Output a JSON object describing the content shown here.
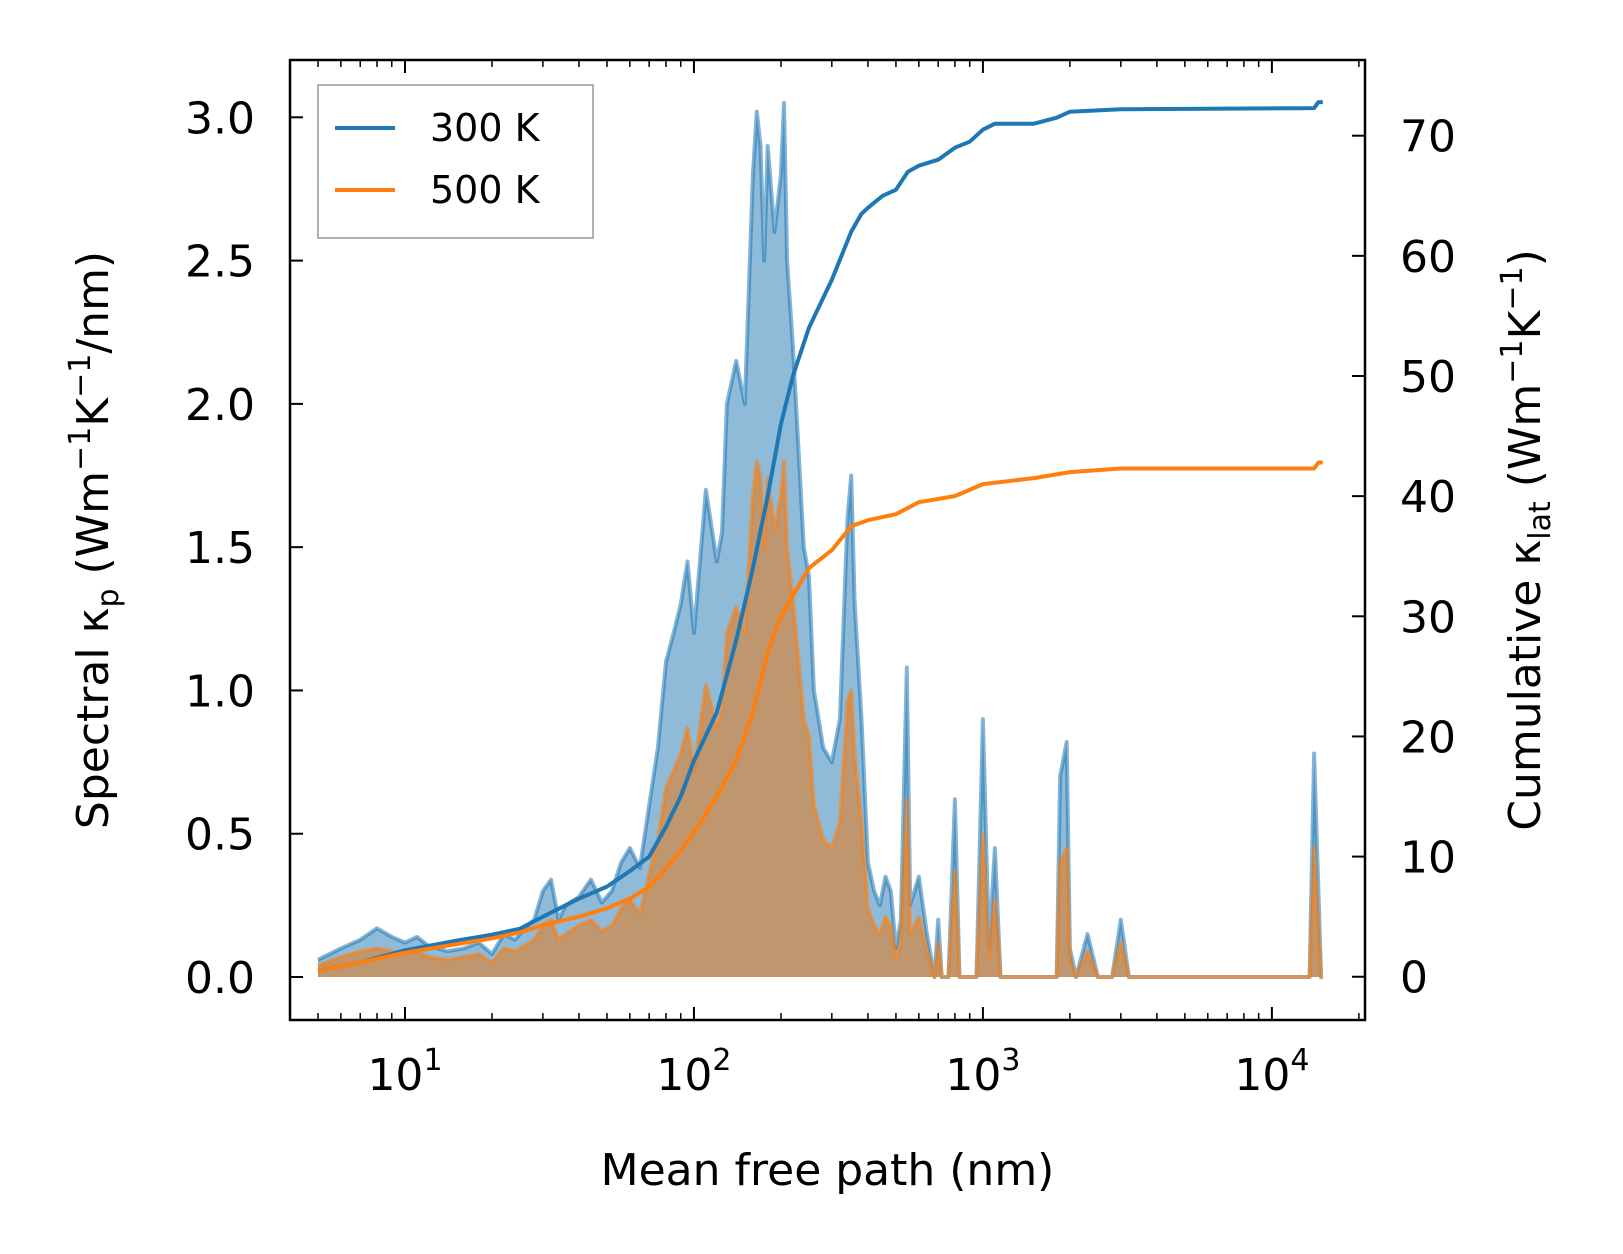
{
  "chart_data": {
    "type": "line",
    "xscale": "log",
    "xlabel": "Mean free path (nm)",
    "ylabel_left": {
      "base": "Spectral κ",
      "sub": "p",
      "unit_open": " (Wm",
      "sup1": "−1",
      "mid": "K",
      "sup2": "−1",
      "unit_close": "/nm)"
    },
    "ylabel_right": {
      "base": "Cumulative κ",
      "sub": "lat",
      "unit_open": " (Wm",
      "sup1": "−1",
      "mid": "K",
      "sup2": "−1",
      "unit_close": ")"
    },
    "xlim": [
      4.0,
      21000
    ],
    "ylim_left": [
      -0.15,
      3.2
    ],
    "ylim_right": [
      -3.6,
      76.3
    ],
    "xticks": [
      {
        "value": 10,
        "base": "10",
        "exp": "1"
      },
      {
        "value": 100,
        "base": "10",
        "exp": "2"
      },
      {
        "value": 1000,
        "base": "10",
        "exp": "3"
      },
      {
        "value": 10000,
        "base": "10",
        "exp": "4"
      }
    ],
    "yticks_left": [
      {
        "value": 0.0,
        "label": "0.0"
      },
      {
        "value": 0.5,
        "label": "0.5"
      },
      {
        "value": 1.0,
        "label": "1.0"
      },
      {
        "value": 1.5,
        "label": "1.5"
      },
      {
        "value": 2.0,
        "label": "2.0"
      },
      {
        "value": 2.5,
        "label": "2.5"
      },
      {
        "value": 3.0,
        "label": "3.0"
      }
    ],
    "yticks_right": [
      {
        "value": 0,
        "label": "0"
      },
      {
        "value": 10,
        "label": "10"
      },
      {
        "value": 20,
        "label": "20"
      },
      {
        "value": 30,
        "label": "30"
      },
      {
        "value": 40,
        "label": "40"
      },
      {
        "value": 50,
        "label": "50"
      },
      {
        "value": 60,
        "label": "60"
      },
      {
        "value": 70,
        "label": "70"
      }
    ],
    "legend": {
      "position": "top-left"
    },
    "series": [
      {
        "name": "300 K",
        "color": "#1f77b4",
        "spectral": [
          [
            5,
            0.06
          ],
          [
            6,
            0.1
          ],
          [
            7,
            0.13
          ],
          [
            8,
            0.17
          ],
          [
            9,
            0.14
          ],
          [
            10,
            0.12
          ],
          [
            11,
            0.14
          ],
          [
            12,
            0.11
          ],
          [
            14,
            0.09
          ],
          [
            16,
            0.1
          ],
          [
            18,
            0.12
          ],
          [
            20,
            0.08
          ],
          [
            22,
            0.15
          ],
          [
            24,
            0.13
          ],
          [
            26,
            0.17
          ],
          [
            28,
            0.2
          ],
          [
            30,
            0.3
          ],
          [
            32,
            0.34
          ],
          [
            34,
            0.2
          ],
          [
            36,
            0.25
          ],
          [
            40,
            0.28
          ],
          [
            44,
            0.34
          ],
          [
            48,
            0.26
          ],
          [
            52,
            0.3
          ],
          [
            56,
            0.4
          ],
          [
            60,
            0.45
          ],
          [
            65,
            0.38
          ],
          [
            70,
            0.6
          ],
          [
            75,
            0.8
          ],
          [
            80,
            1.1
          ],
          [
            85,
            1.2
          ],
          [
            90,
            1.3
          ],
          [
            95,
            1.45
          ],
          [
            100,
            1.2
          ],
          [
            110,
            1.7
          ],
          [
            120,
            1.45
          ],
          [
            125,
            1.55
          ],
          [
            130,
            2.0
          ],
          [
            140,
            2.15
          ],
          [
            150,
            2.0
          ],
          [
            160,
            2.8
          ],
          [
            165,
            3.02
          ],
          [
            170,
            2.9
          ],
          [
            175,
            2.5
          ],
          [
            180,
            2.9
          ],
          [
            190,
            2.6
          ],
          [
            200,
            2.8
          ],
          [
            205,
            3.05
          ],
          [
            210,
            2.5
          ],
          [
            220,
            2.2
          ],
          [
            240,
            1.5
          ],
          [
            250,
            1.4
          ],
          [
            260,
            1.0
          ],
          [
            270,
            0.9
          ],
          [
            280,
            0.8
          ],
          [
            300,
            0.75
          ],
          [
            320,
            0.9
          ],
          [
            340,
            1.6
          ],
          [
            350,
            1.75
          ],
          [
            360,
            1.3
          ],
          [
            380,
            0.9
          ],
          [
            400,
            0.4
          ],
          [
            420,
            0.3
          ],
          [
            440,
            0.25
          ],
          [
            460,
            0.35
          ],
          [
            480,
            0.3
          ],
          [
            500,
            0.1
          ],
          [
            520,
            0.2
          ],
          [
            545,
            1.08
          ],
          [
            560,
            0.25
          ],
          [
            600,
            0.35
          ],
          [
            640,
            0.15
          ],
          [
            680,
            0.0
          ],
          [
            700,
            0.2
          ],
          [
            720,
            0.0
          ],
          [
            760,
            0.0
          ],
          [
            800,
            0.62
          ],
          [
            830,
            0.0
          ],
          [
            870,
            0.0
          ],
          [
            900,
            0.0
          ],
          [
            950,
            0.0
          ],
          [
            1000,
            0.9
          ],
          [
            1050,
            0.1
          ],
          [
            1100,
            0.45
          ],
          [
            1150,
            0.0
          ],
          [
            1200,
            0.0
          ],
          [
            1800,
            0.0
          ],
          [
            1850,
            0.7
          ],
          [
            1950,
            0.82
          ],
          [
            2000,
            0.1
          ],
          [
            2100,
            0.0
          ],
          [
            2300,
            0.15
          ],
          [
            2500,
            0.0
          ],
          [
            2800,
            0.0
          ],
          [
            3000,
            0.2
          ],
          [
            3200,
            0.0
          ],
          [
            13500,
            0.0
          ],
          [
            14000,
            0.78
          ],
          [
            14800,
            0.0
          ],
          [
            15000,
            0.0
          ]
        ],
        "cumulative": [
          [
            5,
            0.5
          ],
          [
            7,
            1.2
          ],
          [
            10,
            2.2
          ],
          [
            15,
            3.0
          ],
          [
            20,
            3.5
          ],
          [
            25,
            4.0
          ],
          [
            30,
            5.0
          ],
          [
            40,
            6.5
          ],
          [
            50,
            7.5
          ],
          [
            60,
            8.8
          ],
          [
            70,
            10.0
          ],
          [
            80,
            12.5
          ],
          [
            90,
            15.0
          ],
          [
            100,
            18.0
          ],
          [
            120,
            22.0
          ],
          [
            140,
            28.0
          ],
          [
            160,
            34.0
          ],
          [
            180,
            40.0
          ],
          [
            200,
            46.0
          ],
          [
            220,
            50.0
          ],
          [
            250,
            54.0
          ],
          [
            280,
            56.5
          ],
          [
            300,
            58.0
          ],
          [
            350,
            62.0
          ],
          [
            380,
            63.5
          ],
          [
            400,
            64.0
          ],
          [
            450,
            65.0
          ],
          [
            500,
            65.5
          ],
          [
            550,
            67.0
          ],
          [
            600,
            67.5
          ],
          [
            700,
            68.0
          ],
          [
            800,
            69.0
          ],
          [
            900,
            69.5
          ],
          [
            1000,
            70.5
          ],
          [
            1100,
            71.0
          ],
          [
            1500,
            71.0
          ],
          [
            1800,
            71.5
          ],
          [
            2000,
            72.0
          ],
          [
            3000,
            72.2
          ],
          [
            14000,
            72.3
          ],
          [
            14500,
            72.8
          ],
          [
            15000,
            72.8
          ]
        ]
      },
      {
        "name": "500 K",
        "color": "#ff7f0e",
        "spectral": [
          [
            5,
            0.04
          ],
          [
            6,
            0.07
          ],
          [
            7,
            0.09
          ],
          [
            8,
            0.1
          ],
          [
            9,
            0.09
          ],
          [
            10,
            0.08
          ],
          [
            11,
            0.09
          ],
          [
            12,
            0.07
          ],
          [
            14,
            0.06
          ],
          [
            16,
            0.07
          ],
          [
            18,
            0.08
          ],
          [
            20,
            0.05
          ],
          [
            22,
            0.1
          ],
          [
            24,
            0.09
          ],
          [
            26,
            0.11
          ],
          [
            28,
            0.13
          ],
          [
            30,
            0.18
          ],
          [
            32,
            0.2
          ],
          [
            34,
            0.13
          ],
          [
            36,
            0.15
          ],
          [
            40,
            0.18
          ],
          [
            44,
            0.2
          ],
          [
            48,
            0.16
          ],
          [
            52,
            0.18
          ],
          [
            56,
            0.24
          ],
          [
            60,
            0.27
          ],
          [
            65,
            0.22
          ],
          [
            70,
            0.36
          ],
          [
            75,
            0.48
          ],
          [
            80,
            0.66
          ],
          [
            85,
            0.72
          ],
          [
            90,
            0.78
          ],
          [
            95,
            0.87
          ],
          [
            100,
            0.72
          ],
          [
            110,
            1.02
          ],
          [
            120,
            0.87
          ],
          [
            125,
            0.93
          ],
          [
            130,
            1.2
          ],
          [
            140,
            1.29
          ],
          [
            150,
            1.2
          ],
          [
            160,
            1.68
          ],
          [
            165,
            1.8
          ],
          [
            170,
            1.74
          ],
          [
            175,
            1.5
          ],
          [
            180,
            1.74
          ],
          [
            190,
            1.56
          ],
          [
            200,
            1.68
          ],
          [
            205,
            1.8
          ],
          [
            210,
            1.5
          ],
          [
            220,
            1.32
          ],
          [
            240,
            0.9
          ],
          [
            250,
            0.84
          ],
          [
            260,
            0.6
          ],
          [
            270,
            0.54
          ],
          [
            280,
            0.48
          ],
          [
            300,
            0.45
          ],
          [
            320,
            0.54
          ],
          [
            340,
            0.96
          ],
          [
            350,
            1.0
          ],
          [
            360,
            0.78
          ],
          [
            380,
            0.54
          ],
          [
            400,
            0.24
          ],
          [
            420,
            0.18
          ],
          [
            440,
            0.15
          ],
          [
            460,
            0.21
          ],
          [
            480,
            0.18
          ],
          [
            500,
            0.06
          ],
          [
            520,
            0.12
          ],
          [
            545,
            0.62
          ],
          [
            560,
            0.15
          ],
          [
            600,
            0.21
          ],
          [
            640,
            0.09
          ],
          [
            680,
            0.0
          ],
          [
            700,
            0.12
          ],
          [
            720,
            0.0
          ],
          [
            760,
            0.0
          ],
          [
            800,
            0.37
          ],
          [
            830,
            0.0
          ],
          [
            870,
            0.0
          ],
          [
            900,
            0.0
          ],
          [
            950,
            0.0
          ],
          [
            1000,
            0.5
          ],
          [
            1050,
            0.06
          ],
          [
            1100,
            0.27
          ],
          [
            1150,
            0.0
          ],
          [
            1200,
            0.0
          ],
          [
            1800,
            0.0
          ],
          [
            1850,
            0.4
          ],
          [
            1950,
            0.45
          ],
          [
            2000,
            0.06
          ],
          [
            2100,
            0.0
          ],
          [
            2300,
            0.09
          ],
          [
            2500,
            0.0
          ],
          [
            2800,
            0.0
          ],
          [
            3000,
            0.12
          ],
          [
            3200,
            0.0
          ],
          [
            13500,
            0.0
          ],
          [
            14000,
            0.45
          ],
          [
            14800,
            0.0
          ],
          [
            15000,
            0.0
          ]
        ],
        "cumulative": [
          [
            5,
            0.5
          ],
          [
            7,
            1.2
          ],
          [
            10,
            2.0
          ],
          [
            15,
            2.7
          ],
          [
            20,
            3.2
          ],
          [
            25,
            3.7
          ],
          [
            30,
            4.3
          ],
          [
            40,
            5.0
          ],
          [
            50,
            5.7
          ],
          [
            60,
            6.5
          ],
          [
            70,
            7.5
          ],
          [
            80,
            9.0
          ],
          [
            90,
            10.5
          ],
          [
            100,
            12.0
          ],
          [
            120,
            15.0
          ],
          [
            140,
            18.0
          ],
          [
            160,
            22.0
          ],
          [
            180,
            27.0
          ],
          [
            200,
            30.0
          ],
          [
            250,
            34.0
          ],
          [
            300,
            35.5
          ],
          [
            350,
            37.5
          ],
          [
            400,
            38.0
          ],
          [
            500,
            38.5
          ],
          [
            600,
            39.5
          ],
          [
            800,
            40.0
          ],
          [
            1000,
            41.0
          ],
          [
            1500,
            41.5
          ],
          [
            2000,
            42.0
          ],
          [
            3000,
            42.3
          ],
          [
            14000,
            42.3
          ],
          [
            14500,
            42.8
          ],
          [
            15000,
            42.8
          ]
        ]
      }
    ]
  }
}
